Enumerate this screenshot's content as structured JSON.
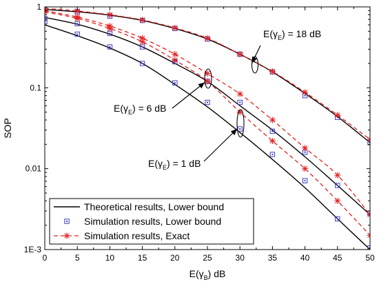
{
  "chart_data": {
    "type": "line",
    "xlabel": "E(γB) dB",
    "ylabel": "SOP",
    "x_ticks": [
      "0",
      "5",
      "10",
      "15",
      "20",
      "25",
      "30",
      "35",
      "40",
      "45",
      "50"
    ],
    "y_ticks": [
      "1E-3",
      "0.01",
      "0.1",
      "1"
    ],
    "xlim": [
      0,
      50
    ],
    "ylim": [
      0.001,
      1
    ],
    "yscale": "log",
    "grid": false,
    "legend_position": "bottom-left",
    "x": [
      0,
      5,
      10,
      15,
      20,
      25,
      30,
      35,
      40,
      45,
      50
    ],
    "series": [
      {
        "name": "Theoretical results, Lower bound",
        "style": "solid",
        "color": "#000000",
        "group": "E(γE) = 18 dB",
        "values": [
          0.93,
          0.87,
          0.79,
          0.68,
          0.54,
          0.4,
          0.26,
          0.157,
          0.085,
          0.044,
          0.021
        ]
      },
      {
        "name": "Simulation results, Lower bound",
        "style": "markers-square",
        "color": "#3b3bbf",
        "group": "E(γE) = 18 dB",
        "values": [
          0.93,
          0.87,
          0.77,
          0.68,
          0.54,
          0.4,
          0.26,
          0.157,
          0.08,
          0.043,
          0.021
        ]
      },
      {
        "name": "Simulation results, Exact",
        "style": "dashed-star",
        "color": "#e02020",
        "group": "E(γE) = 18 dB",
        "values": [
          0.96,
          0.89,
          0.8,
          0.69,
          0.55,
          0.41,
          0.26,
          0.159,
          0.088,
          0.046,
          0.023
        ]
      },
      {
        "name": "Theoretical results, Lower bound",
        "style": "solid",
        "color": "#000000",
        "group": "E(γE) = 6 dB",
        "values": [
          0.74,
          0.61,
          0.46,
          0.32,
          0.2,
          0.12,
          0.06,
          0.03,
          0.014,
          0.0062,
          0.0027
        ]
      },
      {
        "name": "Simulation results, Lower bound",
        "style": "markers-square",
        "color": "#3b3bbf",
        "group": "E(γE) = 6 dB",
        "values": [
          0.72,
          0.62,
          0.47,
          0.32,
          0.21,
          0.12,
          0.066,
          0.029,
          0.016,
          0.0062,
          0.0028
        ]
      },
      {
        "name": "Simulation results, Exact",
        "style": "dashed-star",
        "color": "#e02020",
        "group": "E(γE) = 6 dB",
        "values": [
          0.9,
          0.75,
          0.58,
          0.41,
          0.26,
          0.15,
          0.084,
          0.04,
          0.018,
          0.0083,
          0.0027
        ]
      },
      {
        "name": "Theoretical results, Lower bound",
        "style": "solid",
        "color": "#000000",
        "group": "E(γE) = 1 dB",
        "values": [
          0.6,
          0.44,
          0.31,
          0.2,
          0.11,
          0.058,
          0.028,
          0.013,
          0.0058,
          0.0024,
          0.001
        ]
      },
      {
        "name": "Simulation results, Lower bound",
        "style": "markers-square",
        "color": "#3b3bbf",
        "group": "E(γE) = 1 dB",
        "values": [
          0.66,
          0.46,
          0.32,
          0.2,
          0.115,
          0.066,
          0.031,
          0.015,
          0.0071,
          0.0024,
          0.00105
        ]
      },
      {
        "name": "Simulation results, Exact",
        "style": "dashed-star",
        "color": "#e02020",
        "group": "E(γE) = 1 dB",
        "values": [
          0.87,
          0.72,
          0.54,
          0.37,
          0.22,
          0.12,
          0.05,
          0.022,
          0.01,
          0.004,
          0.0015
        ]
      }
    ],
    "legend": [
      {
        "label": "Theoretical results, Lower bound",
        "style": "solid",
        "color": "#000000"
      },
      {
        "label": "Simulation results, Lower bound",
        "style": "markers-square",
        "color": "#3b3bbf"
      },
      {
        "label": "Simulation results, Exact",
        "style": "dashed-star",
        "color": "#e02020"
      }
    ],
    "annotations": [
      {
        "base": "E(γ",
        "sub": "E",
        "tail": ") = 18 dB",
        "arrow_to": [
          32.5,
          0.19
        ]
      },
      {
        "base": "E(γ",
        "sub": "E",
        "tail": ") = 6 dB",
        "arrow_to": [
          25,
          0.13
        ]
      },
      {
        "base": "E(γ",
        "sub": "E",
        "tail": ") = 1 dB",
        "arrow_to": [
          30,
          0.036
        ]
      }
    ],
    "x_label_parts": {
      "base": "E(γ",
      "sub": "B",
      "tail": ") dB"
    }
  }
}
